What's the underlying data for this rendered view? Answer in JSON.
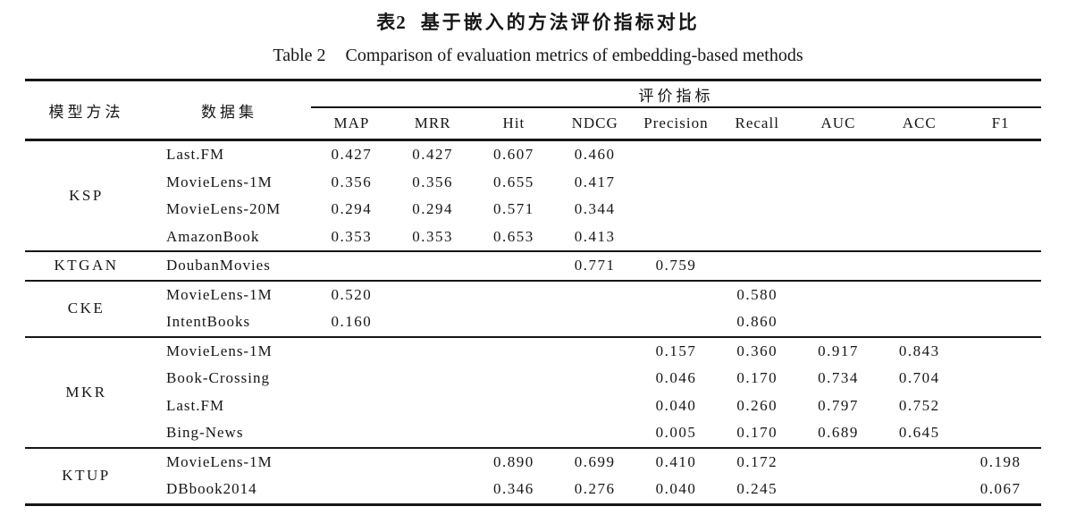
{
  "page": {
    "background": "#ffffff",
    "text_color": "#161616",
    "rule_color": "#161616"
  },
  "caption": {
    "zh_label": "表2",
    "zh_title": "基于嵌入的方法评价指标对比",
    "en_label": "Table 2",
    "en_title": "Comparison of evaluation metrics of embedding-based methods"
  },
  "table": {
    "header": {
      "model": "模型方法",
      "dataset": "数据集",
      "metrics_group": "评价指标",
      "metrics": [
        "MAP",
        "MRR",
        "Hit",
        "NDCG",
        "Precision",
        "Recall",
        "AUC",
        "ACC",
        "F1"
      ]
    },
    "groups": [
      {
        "model": "KSP",
        "rows": [
          {
            "dataset": "Last.FM",
            "values": [
              "0.427",
              "0.427",
              "0.607",
              "0.460",
              "",
              "",
              "",
              "",
              ""
            ]
          },
          {
            "dataset": "MovieLens-1M",
            "values": [
              "0.356",
              "0.356",
              "0.655",
              "0.417",
              "",
              "",
              "",
              "",
              ""
            ]
          },
          {
            "dataset": "MovieLens-20M",
            "values": [
              "0.294",
              "0.294",
              "0.571",
              "0.344",
              "",
              "",
              "",
              "",
              ""
            ]
          },
          {
            "dataset": "AmazonBook",
            "values": [
              "0.353",
              "0.353",
              "0.653",
              "0.413",
              "",
              "",
              "",
              "",
              ""
            ]
          }
        ]
      },
      {
        "model": "KTGAN",
        "rows": [
          {
            "dataset": "DoubanMovies",
            "values": [
              "",
              "",
              "",
              "0.771",
              "0.759",
              "",
              "",
              "",
              ""
            ]
          }
        ]
      },
      {
        "model": "CKE",
        "rows": [
          {
            "dataset": "MovieLens-1M",
            "values": [
              "0.520",
              "",
              "",
              "",
              "",
              "0.580",
              "",
              "",
              ""
            ]
          },
          {
            "dataset": "IntentBooks",
            "values": [
              "0.160",
              "",
              "",
              "",
              "",
              "0.860",
              "",
              "",
              ""
            ]
          }
        ]
      },
      {
        "model": "MKR",
        "rows": [
          {
            "dataset": "MovieLens-1M",
            "values": [
              "",
              "",
              "",
              "",
              "0.157",
              "0.360",
              "0.917",
              "0.843",
              ""
            ]
          },
          {
            "dataset": "Book-Crossing",
            "values": [
              "",
              "",
              "",
              "",
              "0.046",
              "0.170",
              "0.734",
              "0.704",
              ""
            ]
          },
          {
            "dataset": "Last.FM",
            "values": [
              "",
              "",
              "",
              "",
              "0.040",
              "0.260",
              "0.797",
              "0.752",
              ""
            ]
          },
          {
            "dataset": "Bing-News",
            "values": [
              "",
              "",
              "",
              "",
              "0.005",
              "0.170",
              "0.689",
              "0.645",
              ""
            ]
          }
        ]
      },
      {
        "model": "KTUP",
        "rows": [
          {
            "dataset": "MovieLens-1M",
            "values": [
              "",
              "",
              "0.890",
              "0.699",
              "0.410",
              "0.172",
              "",
              "",
              "0.198"
            ]
          },
          {
            "dataset": "DBbook2014",
            "values": [
              "",
              "",
              "0.346",
              "0.276",
              "0.040",
              "0.245",
              "",
              "",
              "0.067"
            ]
          }
        ]
      }
    ]
  }
}
